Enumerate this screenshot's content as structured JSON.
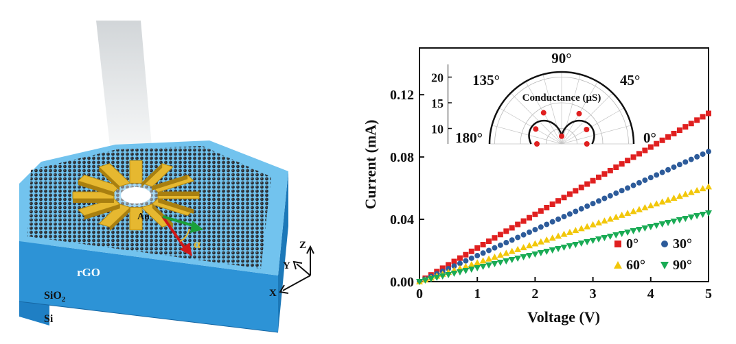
{
  "schematic": {
    "labels": {
      "au": "Au",
      "alpha": "α",
      "rgo": "rGO",
      "sio2_main": "SiO",
      "sio2_sub": "2",
      "si": "Si",
      "axis_z": "Z",
      "axis_y": "Y",
      "axis_x": "X"
    },
    "colors": {
      "substrate_top": "#6fc0ec",
      "substrate_side": "#2b8fd0",
      "rgo": "#2a2c30",
      "gold": "#e6b830",
      "arrow_red": "#d01818",
      "arrow_green": "#1aa03a",
      "light_beam": "#d9dde0"
    }
  },
  "chart_data": {
    "type": "scatter",
    "xlabel": "Voltage (V)",
    "ylabel": "Current (mA)",
    "xlim": [
      0,
      5
    ],
    "ylim": [
      0,
      0.15
    ],
    "x_ticks": [
      0,
      1,
      2,
      3,
      4,
      5
    ],
    "x_tick_labels": [
      "0",
      "1",
      "2",
      "3",
      "4",
      "5"
    ],
    "y_ticks": [
      0.0,
      0.04,
      0.08,
      0.12
    ],
    "y_tick_labels": [
      "0.00",
      "0.04",
      "0.08",
      "0.12"
    ],
    "x": [
      0,
      0.1,
      0.2,
      0.3,
      0.4,
      0.5,
      0.6,
      0.7,
      0.8,
      0.9,
      1.0,
      1.1,
      1.2,
      1.3,
      1.4,
      1.5,
      1.6,
      1.7,
      1.8,
      1.9,
      2.0,
      2.1,
      2.2,
      2.3,
      2.4,
      2.5,
      2.6,
      2.7,
      2.8,
      2.9,
      3.0,
      3.1,
      3.2,
      3.3,
      3.4,
      3.5,
      3.6,
      3.7,
      3.8,
      3.9,
      4.0,
      4.1,
      4.2,
      4.3,
      4.4,
      4.5,
      4.6,
      4.7,
      4.8,
      4.9,
      5.0
    ],
    "series": [
      {
        "name": "0°",
        "marker": "square",
        "color": "#e02020",
        "slope": 0.0216
      },
      {
        "name": "30°",
        "marker": "circle",
        "color": "#2d5b9a",
        "slope": 0.0167
      },
      {
        "name": "60°",
        "marker": "triangle-up",
        "color": "#f2c70a",
        "slope": 0.0122
      },
      {
        "name": "90°",
        "marker": "triangle-down",
        "color": "#1aab55",
        "slope": 0.0088
      }
    ],
    "legend": {
      "position": "bottom-right"
    },
    "inset": {
      "type": "polar",
      "title": "Conductance (μS)",
      "angle_labels": [
        "0°",
        "45°",
        "90°",
        "135°",
        "180°"
      ],
      "radial_ticks": [
        10,
        15,
        20
      ],
      "radial_tick_labels": [
        "10",
        "15",
        "20"
      ],
      "r_range": [
        7,
        21
      ],
      "points_angle_deg": [
        0,
        30,
        60,
        90,
        120,
        150,
        180
      ],
      "points_r": [
        11.9,
        12.6,
        13.8,
        8.5,
        14.0,
        12.8,
        11.8
      ],
      "fit_color": "#111111",
      "point_color": "#e02020"
    }
  }
}
